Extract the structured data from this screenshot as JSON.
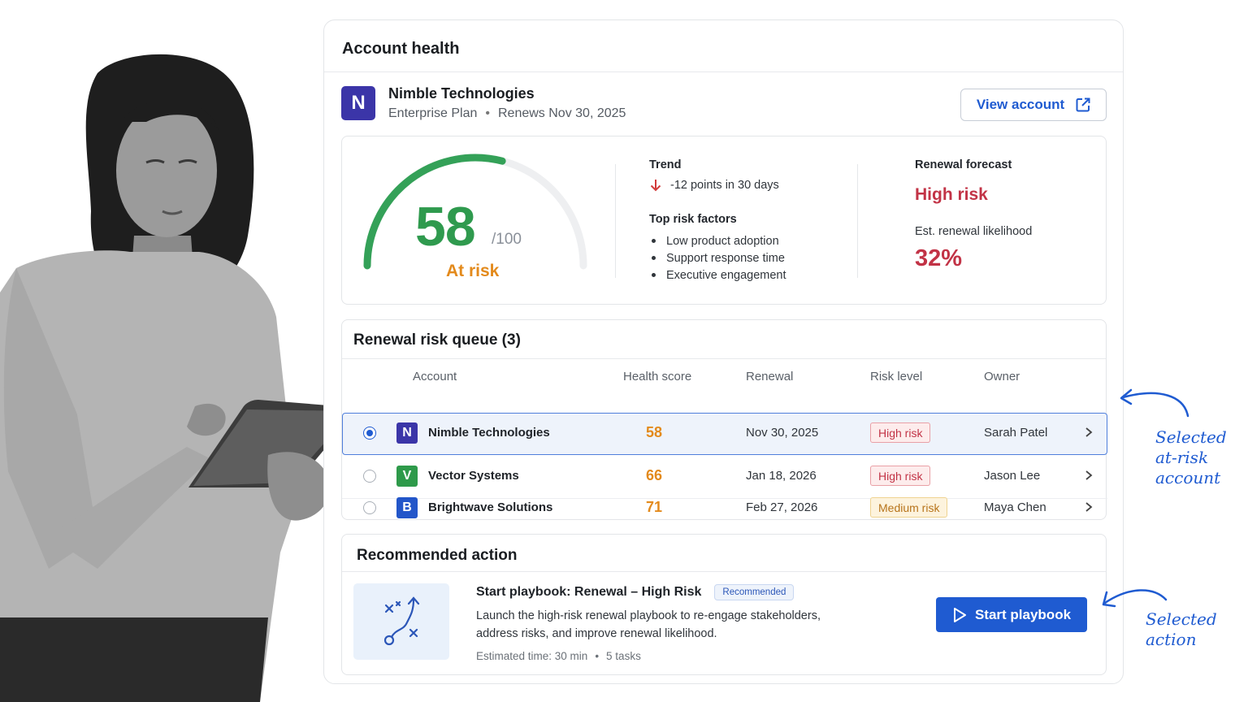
{
  "panel": {
    "title": "Account health"
  },
  "account": {
    "initial": "N",
    "name": "Nimble Technologies",
    "plan": "Enterprise Plan",
    "renews": "Renews Nov 30, 2025",
    "view_button": "View account",
    "avatar_color": "#3b35a8"
  },
  "health": {
    "score": "58",
    "score_value": 58,
    "max": "/100",
    "status": "At risk",
    "trend_title": "Trend",
    "trend_text": "-12 points in 30 days",
    "risk_factors_title": "Top risk factors",
    "risk_factors": [
      "Low product adoption",
      "Support response time",
      "Executive engagement"
    ],
    "forecast_title": "Renewal forecast",
    "forecast_value": "High risk",
    "likelihood_label": "Est. renewal likelihood",
    "likelihood_value": "32%"
  },
  "queue": {
    "title": "Renewal risk queue (3)",
    "headers": [
      "Account",
      "Health score",
      "Renewal",
      "Risk level",
      "Owner"
    ],
    "rows": [
      {
        "initial": "N",
        "name": "Nimble Technologies",
        "score": "58",
        "renewal": "Nov 30, 2025",
        "risk": "High risk",
        "owner": "Sarah Patel",
        "logo_color": "#3b35a8"
      },
      {
        "initial": "V",
        "name": "Vector Systems",
        "score": "66",
        "renewal": "Jan 18, 2026",
        "risk": "High risk",
        "owner": "Jason Lee",
        "logo_color": "#2e9a4a"
      },
      {
        "initial": "B",
        "name": "Brightwave Solutions",
        "score": "71",
        "renewal": "Feb 27, 2026",
        "risk": "Medium risk",
        "owner": "Maya Chen",
        "logo_color": "#2356c9"
      }
    ]
  },
  "recommended": {
    "title": "Recommended action",
    "playbook": "Start playbook: Renewal – High Risk",
    "pill": "Recommended",
    "description": "Launch the high-risk renewal playbook to re-engage stakeholders, address risks, and improve renewal likelihood.",
    "time": "Estimated time: 30 min",
    "tasks": "5 tasks",
    "button": "Start playbook"
  },
  "annotations": {
    "selected_account": [
      "Selected",
      "at-risk",
      "account"
    ],
    "selected_action": [
      "Selected",
      "action"
    ]
  },
  "colors": {
    "accent": "#1f5bd1",
    "good": "#2f9a4e",
    "warn": "#e38a1c",
    "danger": "#c23346"
  }
}
